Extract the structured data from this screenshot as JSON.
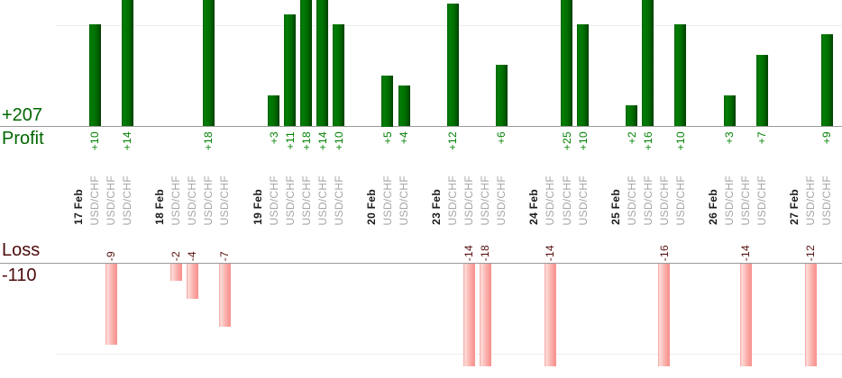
{
  "chart_data": {
    "type": "bar",
    "orientation": "column",
    "legend": "none",
    "panels": {
      "profit": {
        "label": "Profit",
        "total": "+207",
        "text_color": "#006600",
        "value_label_color": "#008000",
        "bar_gradient": [
          "#015d01",
          "#027e07",
          "#013c01"
        ]
      },
      "loss": {
        "label": "Loss",
        "total": "-110",
        "text_color": "#4c0b0b",
        "value_label_color": "#561111",
        "bar_gradient": [
          "#f49d99",
          "#fcdedb",
          "#f69390"
        ]
      }
    },
    "x_symbol_label": "USD/CHF",
    "groups": [
      {
        "date": "17 Feb",
        "trades": [
          10,
          -9,
          14
        ]
      },
      {
        "date": "18 Feb",
        "trades": [
          -2,
          -4,
          18,
          -7
        ]
      },
      {
        "date": "19 Feb",
        "trades": [
          3,
          11,
          18,
          14,
          10
        ]
      },
      {
        "date": "20 Feb",
        "trades": [
          5,
          4
        ]
      },
      {
        "date": "23 Feb",
        "trades": [
          12,
          -14,
          -18,
          6
        ]
      },
      {
        "date": "24 Feb",
        "trades": [
          -14,
          25,
          10
        ]
      },
      {
        "date": "25 Feb",
        "trades": [
          2,
          16,
          -16,
          10
        ]
      },
      {
        "date": "26 Feb",
        "trades": [
          3,
          -14,
          7
        ]
      },
      {
        "date": "27 Feb",
        "trades": [
          -12,
          9
        ]
      }
    ],
    "gridlines": {
      "profit_level": 10,
      "loss_level": -10
    },
    "axis_line_color": "#9a9a9a",
    "gridline_color": "#ececec",
    "date_label_color": "#1c1c1c",
    "symbol_label_color": "#a6a6a6",
    "positive_prefix": "+"
  }
}
